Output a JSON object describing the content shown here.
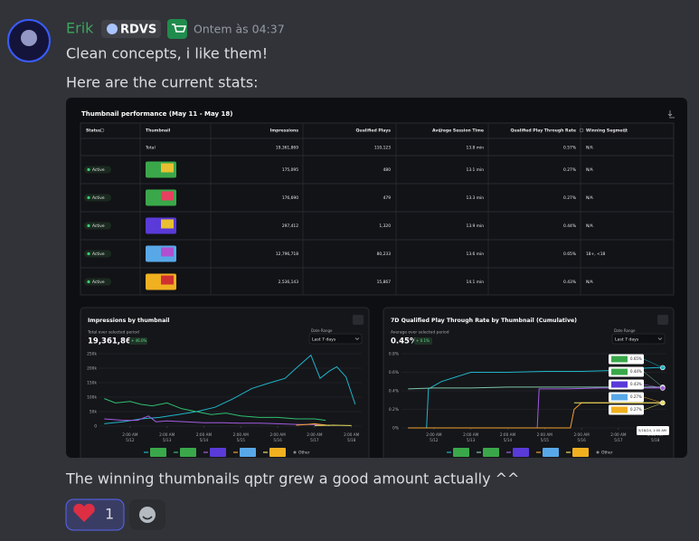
{
  "message": {
    "author": "Erik",
    "tag": "RDVS",
    "timestamp": "Ontem às 04:37",
    "lines": [
      "Clean concepts, i like them!",
      "Here are the current stats:"
    ],
    "after": "The winning thumbnails qptr grew a good amount actually ^^",
    "reaction_count": 1
  },
  "table": {
    "title": "Thumbnail performance (May 11 - May 18)",
    "headers": [
      "Status",
      "Thumbnail",
      "Impressions",
      "Qualified Plays",
      "Average Session Time",
      "Qualified Play Through Rate",
      "Winning Segment"
    ],
    "total": {
      "label": "Total",
      "values": [
        "19,361,869",
        "110,123",
        "13.8 min",
        "0.57%",
        "N/A"
      ]
    },
    "rows": [
      {
        "status": "Active",
        "values": [
          "175,095",
          "480",
          "13.1 min",
          "0.27%",
          "N/A"
        ]
      },
      {
        "status": "Active",
        "values": [
          "176,690",
          "479",
          "13.3 min",
          "0.27%",
          "N/A"
        ]
      },
      {
        "status": "Active",
        "values": [
          "297,412",
          "1,320",
          "13.9 min",
          "0.44%",
          "N/A"
        ]
      },
      {
        "status": "Active",
        "values": [
          "12,796,718",
          "80,233",
          "13.6 min",
          "0.65%",
          "18+, <18"
        ]
      },
      {
        "status": "Active",
        "values": [
          "2,536,143",
          "15,867",
          "14.1 min",
          "0.43%",
          "N/A"
        ]
      }
    ]
  },
  "chart_data": [
    {
      "type": "line",
      "title": "Impressions by thumbnail",
      "summary_label": "Total over selected period",
      "summary": "19,361,869",
      "change": "+ 46.0%",
      "range_label": "Date Range",
      "range": "Last 7 days",
      "legend_other": "Other",
      "xlim": [
        -0.1,
        7.4
      ],
      "xticks": [
        {
          "value": 1,
          "label": "2:00 AM",
          "date": "5/12"
        },
        {
          "value": 2,
          "label": "2:00 AM",
          "date": "5/13"
        },
        {
          "value": 3,
          "label": "2:00 AM",
          "date": "5/14"
        },
        {
          "value": 4,
          "label": "2:00 AM",
          "date": "5/15"
        },
        {
          "value": 5,
          "label": "2:00 AM",
          "date": "5/16"
        },
        {
          "value": 6,
          "label": "2:00 AM",
          "date": "5/17"
        },
        {
          "value": 7,
          "label": "2:00 AM",
          "date": "5/18"
        }
      ],
      "ylim": [
        0,
        250000
      ],
      "yticks": [
        0,
        {
          "value": 50000,
          "label": "50k"
        },
        {
          "value": 100000,
          "label": "100k"
        },
        {
          "value": 150000,
          "label": "150k"
        },
        {
          "value": 200000,
          "label": "200k"
        },
        {
          "value": 250000,
          "label": "250k"
        }
      ],
      "grid": true,
      "series": [
        {
          "color": "#1fb5c9",
          "x": [
            0.3,
            0.8,
            1.3,
            1.8,
            2.3,
            2.8,
            3.3,
            3.8,
            4.3,
            4.8,
            5.2,
            5.5,
            5.9,
            6.15,
            6.4,
            6.6,
            6.85,
            7.1
          ],
          "values": [
            8000,
            15000,
            25000,
            30000,
            40000,
            50000,
            65000,
            95000,
            130000,
            150000,
            165000,
            200000,
            245000,
            165000,
            190000,
            205000,
            170000,
            75000
          ]
        },
        {
          "color": "#2fbf71",
          "x": [
            0.3,
            0.6,
            1.0,
            1.3,
            1.6,
            2.0,
            2.4,
            2.8,
            3.2,
            3.6,
            4.0,
            4.5,
            5.0,
            5.5,
            6.0,
            6.3
          ],
          "values": [
            95000,
            80000,
            85000,
            75000,
            70000,
            80000,
            60000,
            50000,
            40000,
            45000,
            35000,
            30000,
            30000,
            25000,
            25000,
            20000
          ]
        },
        {
          "color": "#a35be0",
          "x": [
            0.3,
            0.8,
            1.2,
            1.5,
            1.7,
            2.0,
            2.5,
            3.0,
            3.5,
            4.0,
            4.5,
            5.0,
            5.5,
            6.0,
            6.3
          ],
          "values": [
            25000,
            20000,
            20000,
            35000,
            15000,
            18000,
            15000,
            12000,
            12000,
            10000,
            10000,
            8000,
            6000,
            5000,
            4000
          ]
        },
        {
          "color": "#f0a030",
          "x": [
            5.5,
            5.8,
            6.0,
            6.2,
            6.4
          ],
          "values": [
            3000,
            6000,
            8000,
            5000,
            2000
          ]
        },
        {
          "color": "#e8e060",
          "x": [
            6.0,
            6.5,
            7.0
          ],
          "values": [
            2000,
            3000,
            2000
          ]
        }
      ]
    },
    {
      "type": "line",
      "title": "7D Qualified Play Through Rate by Thumbnail (Cumulative)",
      "summary_label": "Average over selected period",
      "summary": "0.45%",
      "change": "+ 0.1%",
      "range_label": "Date Range",
      "range": "Last 7 days",
      "legend_other": "Other",
      "tooltip_time": "5/18/24, 1:00 AM",
      "xlim": [
        -0.1,
        7.4
      ],
      "xticks": [
        {
          "value": 1,
          "label": "2:00 AM",
          "date": "5/12"
        },
        {
          "value": 2,
          "label": "2:00 AM",
          "date": "5/13"
        },
        {
          "value": 3,
          "label": "2:00 AM",
          "date": "5/14"
        },
        {
          "value": 4,
          "label": "2:00 AM",
          "date": "5/15"
        },
        {
          "value": 5,
          "label": "2:00 AM",
          "date": "5/16"
        },
        {
          "value": 6,
          "label": "2:00 AM",
          "date": "5/17"
        },
        {
          "value": 7,
          "label": "2:00 AM",
          "date": "5/18"
        }
      ],
      "ylim": [
        0,
        0.8
      ],
      "yticks": [
        {
          "value": 0,
          "label": "0%"
        },
        {
          "value": 0.2,
          "label": "0.2%"
        },
        {
          "value": 0.4,
          "label": "0.4%"
        },
        {
          "value": 0.6,
          "label": "0.6%"
        },
        {
          "value": 0.8,
          "label": "0.8%"
        }
      ],
      "grid": true,
      "series": [
        {
          "color": "#1fb5c9",
          "end_label": "0.65%",
          "x": [
            0.3,
            0.8,
            0.85,
            1.2,
            1.6,
            2.0,
            3.0,
            4.0,
            5.0,
            6.0,
            6.5,
            7.0,
            7.2
          ],
          "values": [
            0,
            0,
            0.42,
            0.5,
            0.55,
            0.6,
            0.6,
            0.61,
            0.61,
            0.62,
            0.64,
            0.65,
            0.65
          ]
        },
        {
          "color": "#7fc8a9",
          "end_label": "0.44%",
          "x": [
            0.3,
            1.0,
            2.0,
            3.0,
            4.0,
            5.0,
            6.0,
            7.2
          ],
          "values": [
            0.42,
            0.43,
            0.43,
            0.44,
            0.44,
            0.44,
            0.44,
            0.44
          ]
        },
        {
          "color": "#a35be0",
          "end_label": "0.43%",
          "x": [
            0.3,
            3.8,
            3.85,
            4.5,
            5.5,
            7.2
          ],
          "values": [
            0,
            0,
            0.42,
            0.42,
            0.43,
            0.43
          ]
        },
        {
          "color": "#f0a030",
          "end_label": "0.27%",
          "x": [
            0.3,
            4.7,
            4.8,
            5.0,
            6.0,
            7.2
          ],
          "values": [
            0,
            0,
            0.2,
            0.27,
            0.27,
            0.27
          ]
        },
        {
          "color": "#e8e060",
          "end_label": "0.27%",
          "x": [
            4.8,
            5.0,
            6.0,
            7.2
          ],
          "values": [
            0.27,
            0.27,
            0.27,
            0.27
          ]
        }
      ]
    }
  ]
}
